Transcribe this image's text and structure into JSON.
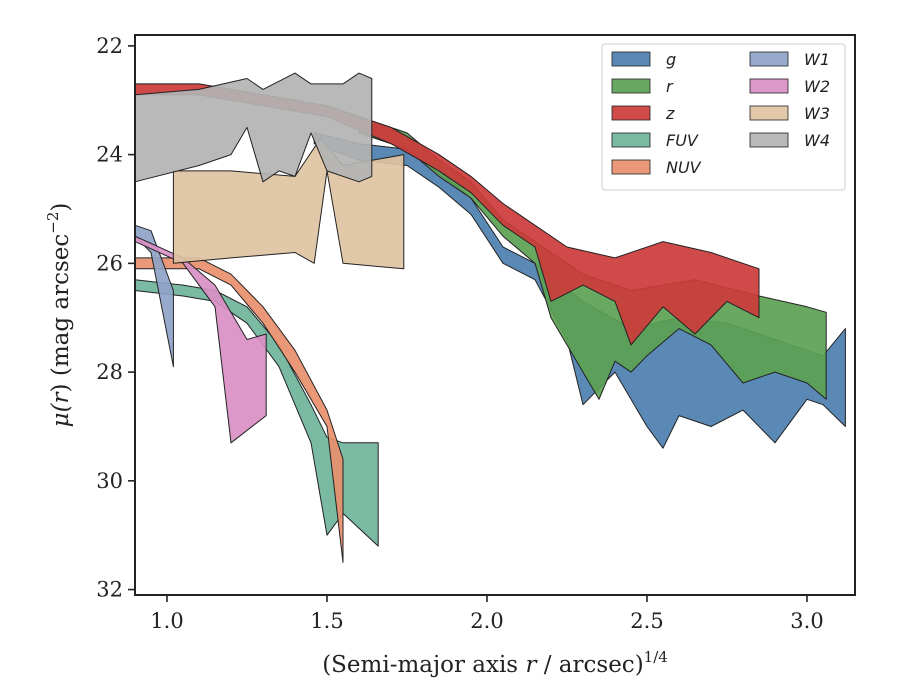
{
  "chart_data": {
    "type": "area",
    "xlabel": "(Semi-major axis r / arcsec)",
    "xlabel_main": "(Semi-major axis ",
    "xlabel_var": "r",
    "xlabel_rest": " / arcsec)",
    "xlabel_exp": "1/4",
    "ylabel_mu": "μ(",
    "ylabel_r": "r",
    "ylabel_rest": ") (mag arcsec",
    "ylabel_exp": "−2",
    "ylabel_close": ")",
    "xlim": [
      0.9,
      3.15
    ],
    "ylim": [
      32.1,
      21.8
    ],
    "y_inverted": true,
    "xticks": [
      1.0,
      1.5,
      2.0,
      2.5,
      3.0
    ],
    "xtick_labels": [
      "1.0",
      "1.5",
      "2.0",
      "2.5",
      "3.0"
    ],
    "yticks": [
      22,
      24,
      26,
      28,
      30,
      32
    ],
    "ytick_labels": [
      "22",
      "24",
      "26",
      "28",
      "30",
      "32"
    ],
    "grid": false,
    "legend_placement": "top-right",
    "legend_columns": 2,
    "series": [
      {
        "name": "g",
        "color": "#4c7fb0",
        "upper": [
          [
            1.46,
            23.6
          ],
          [
            1.6,
            23.8
          ],
          [
            1.75,
            23.9
          ],
          [
            1.85,
            24.3
          ],
          [
            1.95,
            24.8
          ],
          [
            2.05,
            25.7
          ],
          [
            2.15,
            26.0
          ],
          [
            2.3,
            26.7
          ],
          [
            2.45,
            27.2
          ],
          [
            2.6,
            27.0
          ],
          [
            2.75,
            27.1
          ],
          [
            2.9,
            27.4
          ],
          [
            3.0,
            27.6
          ],
          [
            3.05,
            27.7
          ],
          [
            3.12,
            27.2
          ]
        ],
        "lower": [
          [
            1.46,
            23.8
          ],
          [
            1.6,
            24.1
          ],
          [
            1.75,
            24.2
          ],
          [
            1.85,
            24.6
          ],
          [
            1.95,
            25.1
          ],
          [
            2.05,
            26.0
          ],
          [
            2.15,
            26.3
          ],
          [
            2.25,
            27.4
          ],
          [
            2.3,
            28.6
          ],
          [
            2.4,
            28.0
          ],
          [
            2.5,
            29.0
          ],
          [
            2.55,
            29.4
          ],
          [
            2.6,
            28.8
          ],
          [
            2.7,
            29.0
          ],
          [
            2.8,
            28.7
          ],
          [
            2.9,
            29.3
          ],
          [
            3.0,
            28.5
          ],
          [
            3.05,
            28.6
          ],
          [
            3.12,
            29.0
          ]
        ]
      },
      {
        "name": "r",
        "color": "#5ba153",
        "upper": [
          [
            1.6,
            23.3
          ],
          [
            1.75,
            23.6
          ],
          [
            1.85,
            24.1
          ],
          [
            1.95,
            24.5
          ],
          [
            2.05,
            25.2
          ],
          [
            2.15,
            25.6
          ],
          [
            2.3,
            26.2
          ],
          [
            2.45,
            26.5
          ],
          [
            2.65,
            26.3
          ],
          [
            2.85,
            26.6
          ],
          [
            3.0,
            26.8
          ],
          [
            3.06,
            26.9
          ]
        ],
        "lower": [
          [
            1.6,
            23.6
          ],
          [
            1.75,
            23.9
          ],
          [
            1.85,
            24.4
          ],
          [
            1.95,
            24.8
          ],
          [
            2.05,
            25.5
          ],
          [
            2.15,
            26.0
          ],
          [
            2.2,
            27.0
          ],
          [
            2.3,
            28.0
          ],
          [
            2.35,
            28.5
          ],
          [
            2.4,
            27.8
          ],
          [
            2.45,
            28.0
          ],
          [
            2.5,
            27.7
          ],
          [
            2.6,
            27.2
          ],
          [
            2.7,
            27.5
          ],
          [
            2.8,
            28.2
          ],
          [
            2.9,
            28.0
          ],
          [
            3.0,
            28.2
          ],
          [
            3.06,
            28.5
          ]
        ]
      },
      {
        "name": "z",
        "color": "#cc3b3b",
        "upper": [
          [
            0.9,
            22.7
          ],
          [
            1.1,
            22.7
          ],
          [
            1.3,
            22.9
          ],
          [
            1.5,
            23.1
          ],
          [
            1.7,
            23.5
          ],
          [
            1.85,
            24.0
          ],
          [
            1.95,
            24.4
          ],
          [
            2.05,
            24.9
          ],
          [
            2.15,
            25.3
          ],
          [
            2.25,
            25.7
          ],
          [
            2.4,
            25.9
          ],
          [
            2.55,
            25.6
          ],
          [
            2.7,
            25.8
          ],
          [
            2.85,
            26.1
          ]
        ],
        "lower": [
          [
            0.9,
            22.9
          ],
          [
            1.1,
            22.9
          ],
          [
            1.3,
            23.1
          ],
          [
            1.5,
            23.3
          ],
          [
            1.7,
            23.8
          ],
          [
            1.85,
            24.3
          ],
          [
            1.95,
            24.7
          ],
          [
            2.05,
            25.3
          ],
          [
            2.15,
            25.7
          ],
          [
            2.2,
            26.7
          ],
          [
            2.3,
            26.4
          ],
          [
            2.4,
            26.7
          ],
          [
            2.45,
            27.5
          ],
          [
            2.55,
            26.8
          ],
          [
            2.65,
            27.3
          ],
          [
            2.75,
            26.7
          ],
          [
            2.85,
            27.0
          ]
        ]
      },
      {
        "name": "FUV",
        "color": "#6fb39a",
        "upper": [
          [
            0.9,
            26.3
          ],
          [
            1.05,
            26.4
          ],
          [
            1.15,
            26.5
          ],
          [
            1.25,
            26.8
          ],
          [
            1.35,
            27.5
          ],
          [
            1.45,
            28.6
          ],
          [
            1.5,
            29.2
          ],
          [
            1.55,
            29.3
          ],
          [
            1.66,
            29.3
          ]
        ],
        "lower": [
          [
            0.9,
            26.5
          ],
          [
            1.05,
            26.6
          ],
          [
            1.15,
            26.7
          ],
          [
            1.25,
            27.1
          ],
          [
            1.35,
            27.9
          ],
          [
            1.45,
            29.3
          ],
          [
            1.5,
            31.0
          ],
          [
            1.55,
            30.6
          ],
          [
            1.66,
            31.2
          ]
        ]
      },
      {
        "name": "NUV",
        "color": "#e88f6c",
        "upper": [
          [
            0.9,
            25.9
          ],
          [
            1.1,
            25.9
          ],
          [
            1.2,
            26.2
          ],
          [
            1.3,
            26.8
          ],
          [
            1.4,
            27.6
          ],
          [
            1.5,
            28.7
          ],
          [
            1.55,
            29.6
          ]
        ],
        "lower": [
          [
            0.9,
            26.1
          ],
          [
            1.1,
            26.1
          ],
          [
            1.2,
            26.4
          ],
          [
            1.3,
            27.1
          ],
          [
            1.4,
            28.0
          ],
          [
            1.5,
            29.0
          ],
          [
            1.55,
            31.5
          ]
        ]
      },
      {
        "name": "W1",
        "color": "#8fa3c8",
        "upper": [
          [
            0.9,
            25.3
          ],
          [
            0.95,
            25.4
          ],
          [
            1.02,
            26.5
          ]
        ],
        "lower": [
          [
            0.9,
            25.5
          ],
          [
            0.95,
            25.8
          ],
          [
            1.02,
            27.9
          ]
        ]
      },
      {
        "name": "W2",
        "color": "#d98fc4",
        "upper": [
          [
            0.9,
            25.5
          ],
          [
            1.05,
            25.9
          ],
          [
            1.15,
            26.4
          ],
          [
            1.25,
            27.4
          ],
          [
            1.31,
            27.3
          ]
        ],
        "lower": [
          [
            0.9,
            25.6
          ],
          [
            1.05,
            26.0
          ],
          [
            1.15,
            26.8
          ],
          [
            1.2,
            29.3
          ],
          [
            1.31,
            28.8
          ]
        ]
      },
      {
        "name": "W3",
        "color": "#dec3a1",
        "upper": [
          [
            1.02,
            24.3
          ],
          [
            1.2,
            24.3
          ],
          [
            1.4,
            24.4
          ],
          [
            1.48,
            23.7
          ],
          [
            1.55,
            24.2
          ],
          [
            1.74,
            24.0
          ]
        ],
        "lower": [
          [
            1.02,
            26.0
          ],
          [
            1.2,
            25.9
          ],
          [
            1.4,
            25.8
          ],
          [
            1.46,
            26.0
          ],
          [
            1.5,
            24.3
          ],
          [
            1.55,
            26.0
          ],
          [
            1.74,
            26.1
          ]
        ]
      },
      {
        "name": "W4",
        "color": "#b3b3b3",
        "upper": [
          [
            0.9,
            22.9
          ],
          [
            1.1,
            22.8
          ],
          [
            1.25,
            22.6
          ],
          [
            1.3,
            22.8
          ],
          [
            1.4,
            22.5
          ],
          [
            1.45,
            22.7
          ],
          [
            1.55,
            22.7
          ],
          [
            1.6,
            22.5
          ],
          [
            1.64,
            22.6
          ]
        ],
        "lower": [
          [
            0.9,
            24.5
          ],
          [
            1.1,
            24.2
          ],
          [
            1.2,
            24.0
          ],
          [
            1.25,
            23.5
          ],
          [
            1.3,
            24.5
          ],
          [
            1.35,
            24.3
          ],
          [
            1.4,
            24.4
          ],
          [
            1.45,
            23.6
          ],
          [
            1.5,
            24.3
          ],
          [
            1.6,
            24.5
          ],
          [
            1.64,
            24.4
          ]
        ]
      }
    ]
  }
}
